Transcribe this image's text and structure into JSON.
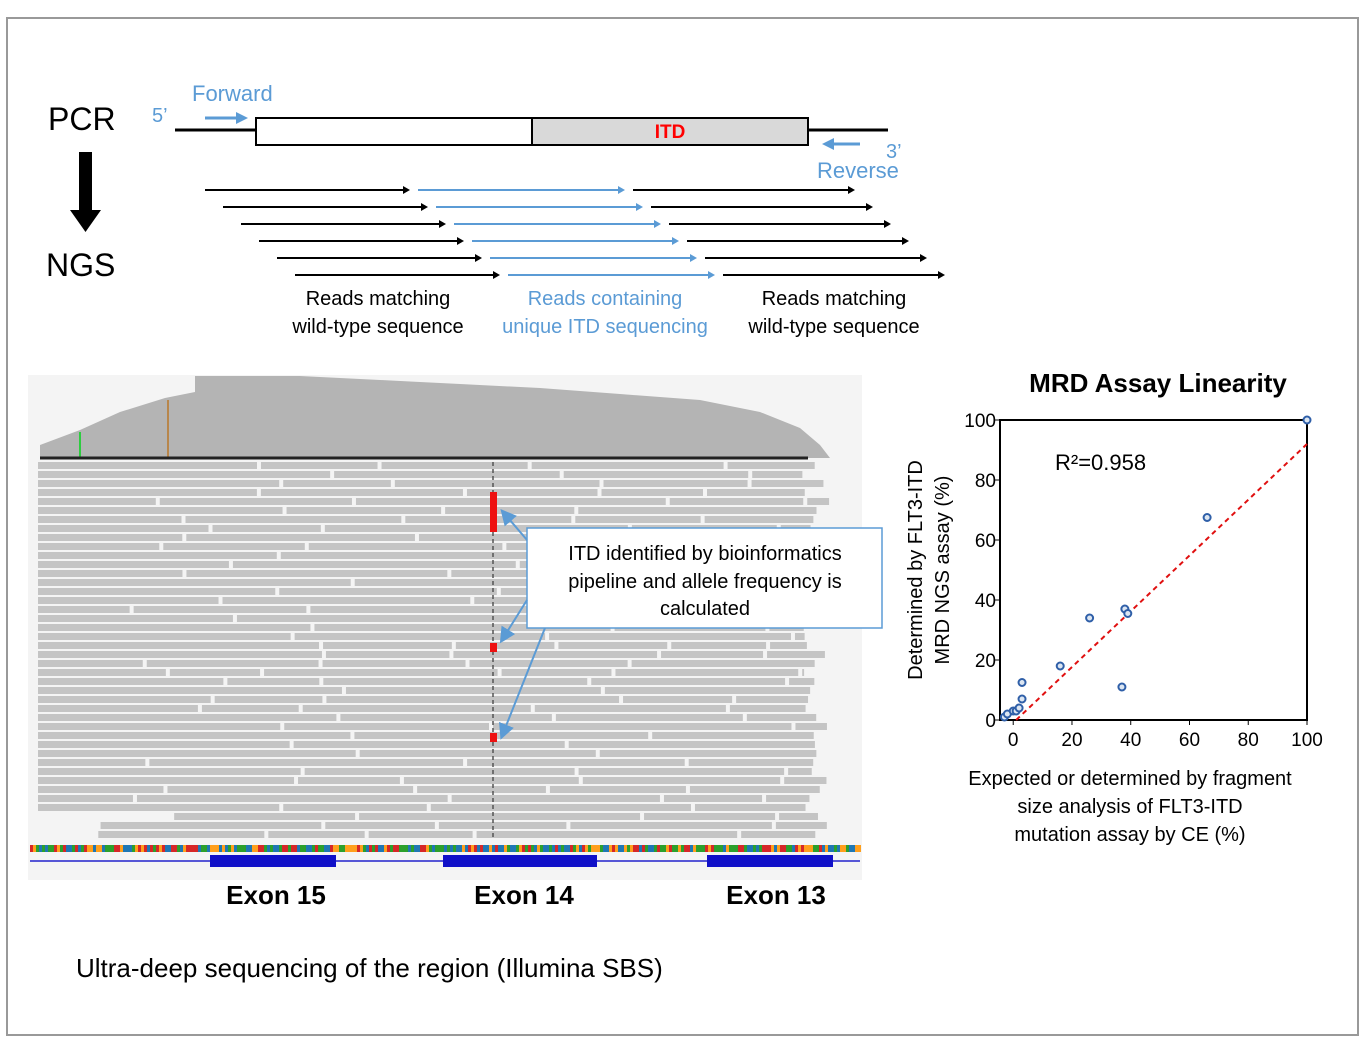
{
  "diagram": {
    "pcr_label": "PCR",
    "ngs_label": "NGS",
    "five_prime": "5’",
    "forward": "Forward",
    "three_prime": "3’",
    "reverse": "Reverse",
    "itd": "ITD",
    "reads_left": [
      "Reads matching",
      "wild-type sequence"
    ],
    "reads_middle": [
      "Reads containing",
      "unique ITD sequencing"
    ],
    "reads_right": [
      "Reads matching",
      "wild-type sequence"
    ],
    "callout": [
      "ITD identified by bioinformatics",
      "pipeline and allele frequency is",
      "calculated"
    ],
    "exons": [
      "Exon 15",
      "Exon 14",
      "Exon 13"
    ],
    "caption": "Ultra-deep sequencing of the region (Illumina SBS)"
  },
  "chart_data": {
    "type": "scatter",
    "title": "MRD Assay Linearity",
    "annotation": "R²=0.958",
    "y_label": [
      "Determined by FLT3-ITD",
      "MRD NGS assay (%)"
    ],
    "x_label": [
      "Expected or determined by fragment",
      "size analysis of FLT3-ITD",
      "mutation assay by CE (%)"
    ],
    "x": [
      -3,
      -2,
      0,
      1,
      2,
      3,
      3,
      16,
      26,
      37,
      38,
      39,
      66,
      100
    ],
    "values": [
      1,
      2,
      3,
      3,
      4,
      7,
      12.5,
      18,
      34,
      11,
      37,
      35.5,
      67.5,
      100
    ],
    "color": "#2f5fa8",
    "trend": {
      "x": [
        1,
        100
      ],
      "values": [
        0,
        92
      ],
      "color": "#e01010"
    },
    "xlim": [
      -4.5,
      100
    ],
    "ylim": [
      0,
      100
    ],
    "xticks": [
      0,
      20,
      40,
      60,
      80,
      100
    ],
    "yticks": [
      0,
      20,
      40,
      60,
      80,
      100
    ]
  }
}
